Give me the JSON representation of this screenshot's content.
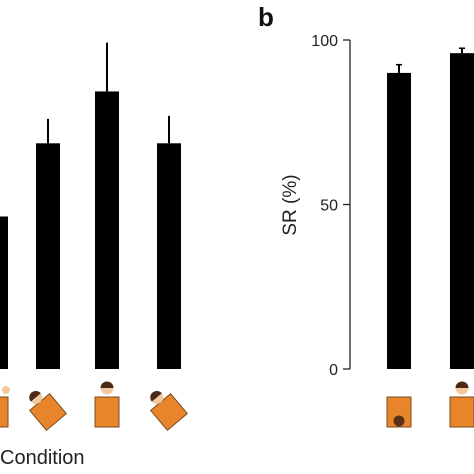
{
  "colors": {
    "bar": "#000000",
    "icon_fill": "#E8852B",
    "icon_stroke": "#7a4a1c",
    "head": "#f2c9a0",
    "hair": "#4a2a16",
    "axis": "#222222"
  },
  "chart_data": [
    {
      "panel": "",
      "type": "bar",
      "xlabel": "Condition",
      "ylabel": "",
      "ylim": [
        0,
        100
      ],
      "grid": false,
      "categories": [
        "",
        "",
        "",
        "",
        ""
      ],
      "values": [
        50,
        74,
        91,
        74,
        0
      ],
      "errors": [
        0,
        8,
        16,
        9,
        0
      ],
      "icons": [
        "upright-face-partial",
        "tilted-head",
        "upright-head",
        "tilted-head",
        "none"
      ]
    },
    {
      "panel": "b",
      "type": "bar",
      "xlabel": "",
      "ylabel": "SR (%)",
      "ylim": [
        0,
        100
      ],
      "yticks": [
        "0",
        "50",
        "100"
      ],
      "grid": false,
      "categories": [
        "",
        ""
      ],
      "values": [
        90,
        96
      ],
      "errors": [
        2.5,
        1.5
      ],
      "icons": [
        "upright-face-bottom",
        "upright-head"
      ]
    }
  ]
}
